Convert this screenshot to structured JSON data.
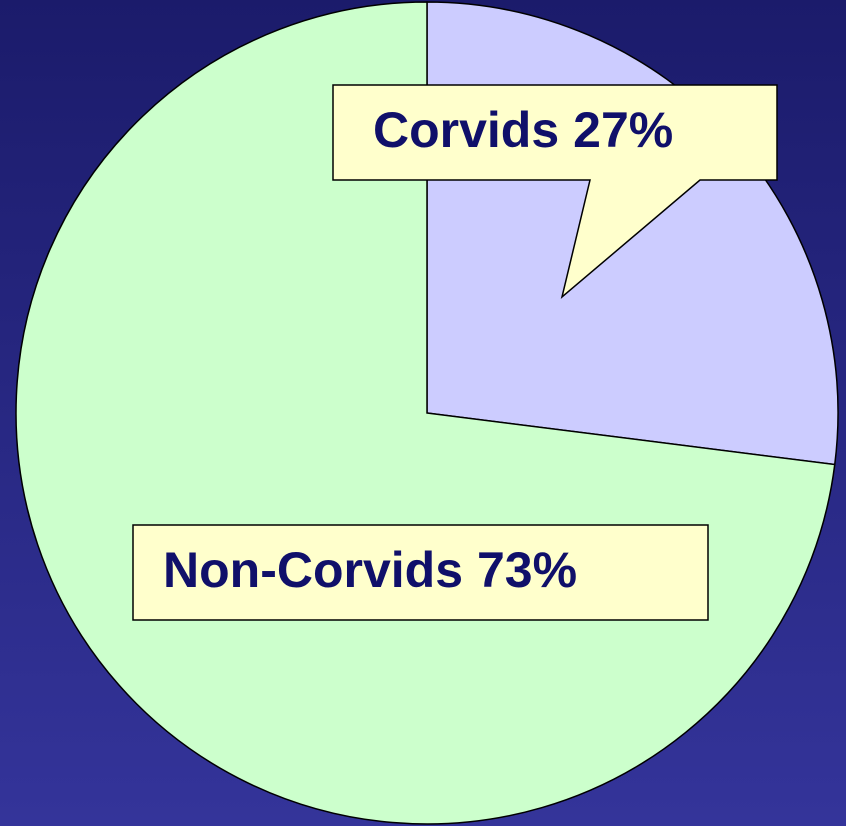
{
  "chart_data": {
    "type": "pie",
    "categories": [
      "Corvids",
      "Non-Corvids"
    ],
    "values": [
      27,
      73
    ],
    "value_labels": [
      "27%",
      "73%"
    ],
    "colors": [
      "#ccccff",
      "#ccffcc"
    ]
  }
}
